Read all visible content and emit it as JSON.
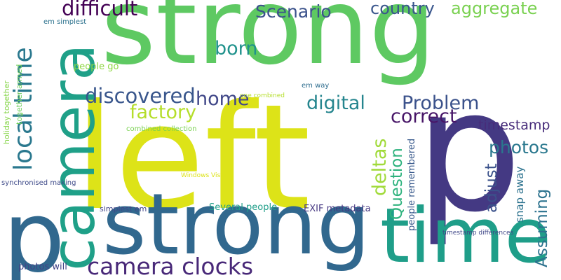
{
  "words": [
    {
      "text": "strong",
      "color": "#5ec962",
      "vertical": false
    },
    {
      "text": "left",
      "color": "#dde318",
      "vertical": false
    },
    {
      "text": "p",
      "color": "#443983",
      "vertical": false
    },
    {
      "text": "strong",
      "color": "#31688e",
      "vertical": false
    },
    {
      "text": "p",
      "color": "#31688e",
      "vertical": false
    },
    {
      "text": "camera",
      "color": "#1fa088",
      "vertical": true
    },
    {
      "text": "time",
      "color": "#1f9e89",
      "vertical": false
    },
    {
      "text": "local time",
      "color": "#2a788e",
      "vertical": true
    },
    {
      "text": "camera clocks",
      "color": "#482878",
      "vertical": false
    },
    {
      "text": "difficult",
      "color": "#440154",
      "vertical": false
    },
    {
      "text": "Scenario",
      "color": "#3b528b",
      "vertical": false
    },
    {
      "text": "country",
      "color": "#39568c",
      "vertical": false
    },
    {
      "text": "aggregate",
      "color": "#7ad151",
      "vertical": false
    },
    {
      "text": "born",
      "color": "#20928c",
      "vertical": false
    },
    {
      "text": "discovered",
      "color": "#39568c",
      "vertical": false
    },
    {
      "text": "home",
      "color": "#404788",
      "vertical": false
    },
    {
      "text": "factory",
      "color": "#b5de2b",
      "vertical": false
    },
    {
      "text": "digital",
      "color": "#25858e",
      "vertical": false
    },
    {
      "text": "Problem",
      "color": "#3b528b",
      "vertical": false
    },
    {
      "text": "correct",
      "color": "#481668",
      "vertical": false
    },
    {
      "text": "timestamp",
      "color": "#472c7a",
      "vertical": false
    },
    {
      "text": "photos",
      "color": "#2a788e",
      "vertical": false
    },
    {
      "text": "deltas",
      "color": "#a0da39",
      "vertical": true
    },
    {
      "text": "Question",
      "color": "#2db27d",
      "vertical": true
    },
    {
      "text": "adjust",
      "color": "#3b528b",
      "vertical": true
    },
    {
      "text": "Assuming",
      "color": "#2c728e",
      "vertical": true
    },
    {
      "text": "snap away",
      "color": "#2c728e",
      "vertical": true
    },
    {
      "text": "people remembered",
      "color": "#38598c",
      "vertical": true
    },
    {
      "text": "EXIF metadata",
      "color": "#453781",
      "vertical": false
    },
    {
      "text": "Several people",
      "color": "#1f9e89",
      "vertical": false
    },
    {
      "text": "photos will",
      "color": "#414487",
      "vertical": false
    },
    {
      "text": "simplest em",
      "color": "#414487",
      "vertical": false
    },
    {
      "text": "people go",
      "color": "#8fd744",
      "vertical": false
    },
    {
      "text": "em simplest",
      "color": "#2c728e",
      "vertical": false
    },
    {
      "text": "together armed",
      "color": "#6ccd5a",
      "vertical": true
    },
    {
      "text": "holiday together",
      "color": "#86d549",
      "vertical": true
    },
    {
      "text": "synchronised making",
      "color": "#3e4a89",
      "vertical": false
    },
    {
      "text": "combined collection",
      "color": "#7ad151",
      "vertical": false
    },
    {
      "text": "one combined",
      "color": "#b5de2b",
      "vertical": false
    },
    {
      "text": "em way",
      "color": "#2e6d8e",
      "vertical": false
    },
    {
      "text": "Windows Vista",
      "color": "#dde318",
      "vertical": false
    },
    {
      "text": "timestamp differences",
      "color": "#3f4788",
      "vertical": false
    }
  ]
}
